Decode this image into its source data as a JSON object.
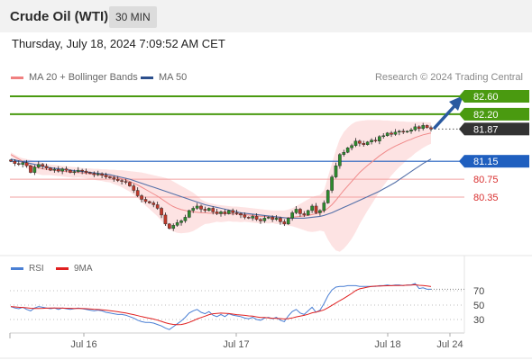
{
  "header": {
    "title": "Crude Oil (WTI)",
    "timeframe": "30 MIN"
  },
  "timestamp": "Thursday, July 18, 2024 7:09:52 AM CET",
  "legend": {
    "bollinger": {
      "label": "MA 20 + Bollinger Bands",
      "color": "#f08080"
    },
    "ma50": {
      "label": "MA 50",
      "color": "#2c4f8c"
    }
  },
  "credit": "Research © 2024 Trading Central",
  "rsi_legend": {
    "rsi": {
      "label": "RSI",
      "color": "#4a7fd4"
    },
    "ma9": {
      "label": "9MA",
      "color": "#e02020"
    }
  },
  "chart_data": [
    {
      "type": "candlestick",
      "levels": [
        {
          "value": 82.6,
          "label": "82.60",
          "kind": "resistance",
          "color": "#4a9a10"
        },
        {
          "value": 82.2,
          "label": "82.20",
          "kind": "resistance",
          "color": "#4a9a10"
        },
        {
          "value": 81.87,
          "label": "81.87",
          "kind": "last-price",
          "color": "#333333"
        },
        {
          "value": 81.15,
          "label": "81.15",
          "kind": "pivot",
          "color": "#1f5fbf"
        },
        {
          "value": 80.75,
          "label": "80.75",
          "kind": "support",
          "color": "#d93030"
        },
        {
          "value": 80.35,
          "label": "80.35",
          "kind": "support",
          "color": "#d93030"
        }
      ],
      "x_tick_labels": [
        "Jul 16",
        "Jul 17",
        "Jul 18",
        "Jul 24"
      ],
      "close": [
        81.15,
        81.1,
        81.08,
        81.12,
        81.05,
        80.9,
        81.02,
        81.08,
        81.04,
        81.0,
        80.95,
        80.97,
        80.93,
        80.98,
        80.95,
        80.9,
        80.92,
        80.95,
        80.93,
        80.9,
        80.88,
        80.85,
        80.87,
        80.84,
        80.8,
        80.78,
        80.75,
        80.72,
        80.7,
        80.68,
        80.6,
        80.5,
        80.38,
        80.3,
        80.25,
        80.22,
        80.18,
        80.1,
        79.95,
        79.75,
        79.65,
        79.72,
        79.78,
        79.82,
        79.9,
        80.05,
        80.1,
        80.15,
        80.08,
        80.05,
        80.1,
        80.02,
        79.98,
        80.02,
        79.98,
        80.05,
        80.0,
        79.98,
        79.95,
        79.9,
        79.88,
        79.92,
        79.85,
        79.82,
        79.88,
        79.9,
        79.85,
        79.88,
        79.8,
        79.75,
        79.88,
        80.0,
        80.08,
        79.98,
        79.95,
        80.05,
        80.15,
        80.0,
        80.05,
        80.22,
        80.5,
        80.8,
        81.05,
        81.3,
        81.35,
        81.45,
        81.5,
        81.6,
        81.55,
        81.52,
        81.58,
        81.62,
        81.6,
        81.7,
        81.72,
        81.78,
        81.75,
        81.8,
        81.82,
        81.8,
        81.82,
        81.85,
        81.92,
        81.88,
        81.95,
        81.9,
        81.87
      ],
      "ma20": [
        81.3,
        81.25,
        81.2,
        81.15,
        81.1,
        81.05,
        81.02,
        81.0,
        80.98,
        80.97,
        80.96,
        80.95,
        80.94,
        80.93,
        80.92,
        80.91,
        80.9,
        80.9,
        80.89,
        80.88,
        80.87,
        80.86,
        80.85,
        80.84,
        80.83,
        80.82,
        80.8,
        80.78,
        80.76,
        80.73,
        80.7,
        80.66,
        80.62,
        80.57,
        80.52,
        80.47,
        80.42,
        80.37,
        80.31,
        80.25,
        80.19,
        80.14,
        80.1,
        80.07,
        80.05,
        80.03,
        80.02,
        80.01,
        80.0,
        80.0,
        79.99,
        79.99,
        79.99,
        79.98,
        79.98,
        79.98,
        79.97,
        79.97,
        79.96,
        79.96,
        79.95,
        79.94,
        79.93,
        79.92,
        79.92,
        79.91,
        79.91,
        79.9,
        79.9,
        79.89,
        79.89,
        79.9,
        79.91,
        79.92,
        79.93,
        79.94,
        79.96,
        79.98,
        80.0,
        80.04,
        80.1,
        80.18,
        80.28,
        80.39,
        80.5,
        80.6,
        80.7,
        80.8,
        80.9,
        80.98,
        81.06,
        81.13,
        81.2,
        81.27,
        81.33,
        81.39,
        81.44,
        81.49,
        81.53,
        81.57,
        81.61,
        81.64,
        81.68,
        81.71,
        81.74,
        81.76,
        81.78
      ],
      "bb_upper": [
        81.35,
        81.3,
        81.25,
        81.22,
        81.2,
        81.18,
        81.16,
        81.14,
        81.12,
        81.1,
        81.08,
        81.07,
        81.06,
        81.05,
        81.04,
        81.03,
        81.02,
        81.01,
        81.0,
        80.99,
        80.99,
        80.98,
        80.98,
        80.97,
        80.97,
        80.96,
        80.96,
        80.95,
        80.95,
        80.94,
        80.93,
        80.92,
        80.91,
        80.9,
        80.88,
        80.86,
        80.84,
        80.82,
        80.8,
        80.78,
        80.75,
        80.7,
        80.65,
        80.6,
        80.55,
        80.5,
        80.45,
        80.38,
        80.3,
        80.25,
        80.22,
        80.2,
        80.18,
        80.17,
        80.16,
        80.15,
        80.14,
        80.14,
        80.13,
        80.12,
        80.11,
        80.1,
        80.09,
        80.08,
        80.07,
        80.06,
        80.05,
        80.05,
        80.05,
        80.05,
        80.07,
        80.1,
        80.15,
        80.2,
        80.25,
        80.3,
        80.35,
        80.38,
        80.4,
        80.5,
        80.8,
        81.1,
        81.4,
        81.65,
        81.8,
        81.9,
        81.98,
        82.03,
        82.05,
        82.06,
        82.07,
        82.07,
        82.07,
        82.07,
        82.06,
        82.06,
        82.05,
        82.05,
        82.04,
        82.04,
        82.03,
        82.03,
        82.03,
        82.03,
        82.03,
        82.02,
        82.02
      ],
      "bb_lower": [
        81.25,
        81.2,
        81.15,
        81.08,
        81.0,
        80.92,
        80.88,
        80.86,
        80.84,
        80.84,
        80.84,
        80.83,
        80.82,
        80.81,
        80.8,
        80.79,
        80.78,
        80.79,
        80.78,
        80.77,
        80.75,
        80.74,
        80.72,
        80.71,
        80.69,
        80.68,
        80.64,
        80.61,
        80.57,
        80.52,
        80.47,
        80.4,
        80.33,
        80.24,
        80.16,
        80.08,
        80.0,
        79.92,
        79.82,
        79.72,
        79.63,
        79.58,
        79.55,
        79.54,
        79.55,
        79.56,
        79.59,
        79.64,
        79.7,
        79.75,
        79.76,
        79.78,
        79.8,
        79.79,
        79.8,
        79.81,
        79.8,
        79.8,
        79.79,
        79.8,
        79.79,
        79.78,
        79.77,
        79.76,
        79.77,
        79.76,
        79.77,
        79.75,
        79.75,
        79.73,
        79.71,
        79.7,
        79.67,
        79.64,
        79.61,
        79.58,
        79.57,
        79.58,
        79.6,
        79.58,
        79.4,
        79.26,
        79.16,
        79.13,
        79.2,
        79.3,
        79.42,
        79.57,
        79.75,
        79.9,
        80.05,
        80.19,
        80.33,
        80.47,
        80.6,
        80.72,
        80.83,
        80.93,
        81.02,
        81.1,
        81.19,
        81.25,
        81.33,
        81.39,
        81.45,
        81.5,
        81.54
      ],
      "ma50": [
        81.2,
        81.18,
        81.16,
        81.14,
        81.12,
        81.1,
        81.08,
        81.06,
        81.04,
        81.02,
        81.0,
        80.99,
        80.98,
        80.97,
        80.96,
        80.95,
        80.94,
        80.93,
        80.92,
        80.91,
        80.9,
        80.89,
        80.88,
        80.87,
        80.86,
        80.85,
        80.83,
        80.81,
        80.79,
        80.77,
        80.75,
        80.72,
        80.69,
        80.66,
        80.63,
        80.6,
        80.57,
        80.54,
        80.51,
        80.48,
        80.45,
        80.42,
        80.39,
        80.36,
        80.33,
        80.3,
        80.27,
        80.24,
        80.21,
        80.18,
        80.16,
        80.14,
        80.12,
        80.1,
        80.08,
        80.06,
        80.04,
        80.02,
        80.0,
        79.99,
        79.98,
        79.97,
        79.96,
        79.95,
        79.94,
        79.93,
        79.92,
        79.91,
        79.9,
        79.89,
        79.88,
        79.88,
        79.88,
        79.88,
        79.88,
        79.89,
        79.9,
        79.91,
        79.92,
        79.94,
        79.97,
        80.0,
        80.04,
        80.08,
        80.12,
        80.16,
        80.2,
        80.24,
        80.28,
        80.32,
        80.36,
        80.4,
        80.44,
        80.48,
        80.53,
        80.58,
        80.63,
        80.68,
        80.74,
        80.8,
        80.86,
        80.92,
        80.98,
        81.04,
        81.1,
        81.15,
        81.2
      ]
    },
    {
      "type": "line",
      "name": "RSI",
      "y_tick_labels": [
        "70",
        "50",
        "30"
      ],
      "ylim": [
        10,
        90
      ],
      "rsi": [
        48,
        46,
        45,
        47,
        44,
        42,
        46,
        48,
        47,
        46,
        45,
        46,
        44,
        46,
        45,
        44,
        45,
        46,
        45,
        44,
        43,
        42,
        43,
        42,
        40,
        39,
        38,
        37,
        37,
        36,
        34,
        32,
        29,
        27,
        26,
        26,
        25,
        23,
        21,
        18,
        16,
        20,
        24,
        28,
        33,
        39,
        42,
        44,
        40,
        38,
        41,
        36,
        34,
        37,
        34,
        38,
        36,
        35,
        34,
        32,
        31,
        33,
        30,
        29,
        32,
        33,
        31,
        33,
        29,
        27,
        35,
        41,
        44,
        39,
        37,
        42,
        47,
        40,
        43,
        52,
        63,
        71,
        75,
        76,
        76,
        77,
        77,
        77,
        76,
        76,
        76,
        76,
        76,
        77,
        77,
        78,
        77,
        78,
        78,
        77,
        78,
        78,
        80,
        73,
        74,
        72,
        72
      ],
      "ma9": [
        48,
        47.5,
        47,
        46.7,
        46.2,
        45.6,
        45.4,
        45.4,
        45.5,
        45.7,
        45.9,
        46,
        45.9,
        45.8,
        45.6,
        45.5,
        45.4,
        45.3,
        45.2,
        45,
        44.7,
        44.3,
        43.9,
        43.5,
        43,
        42.3,
        41.5,
        40.7,
        39.9,
        39,
        37.9,
        36.7,
        35.4,
        34,
        32.9,
        31.8,
        30.6,
        29.1,
        27.4,
        25.5,
        24.1,
        23.1,
        22.7,
        23,
        24.2,
        26,
        28.3,
        30.8,
        32.8,
        34.6,
        36.8,
        38,
        38.5,
        38.9,
        38.6,
        38.3,
        37.5,
        36.8,
        36.2,
        35.8,
        35,
        34.6,
        33.6,
        32.8,
        32.7,
        32.3,
        31.7,
        31.6,
        31.3,
        30.7,
        31.2,
        32.1,
        33.6,
        34.6,
        35.8,
        37.3,
        39.2,
        40.4,
        41.7,
        43.4,
        46.4,
        49.6,
        52.9,
        56.3,
        59.2,
        62.7,
        66.3,
        70.3,
        72.6,
        73.8,
        75,
        75.9,
        76.4,
        76.4,
        76.7,
        76.9,
        77,
        77.1,
        77.2,
        77.4,
        77.6,
        77.9,
        78.2,
        77.5,
        77.1,
        76.6,
        75.8
      ]
    }
  ]
}
